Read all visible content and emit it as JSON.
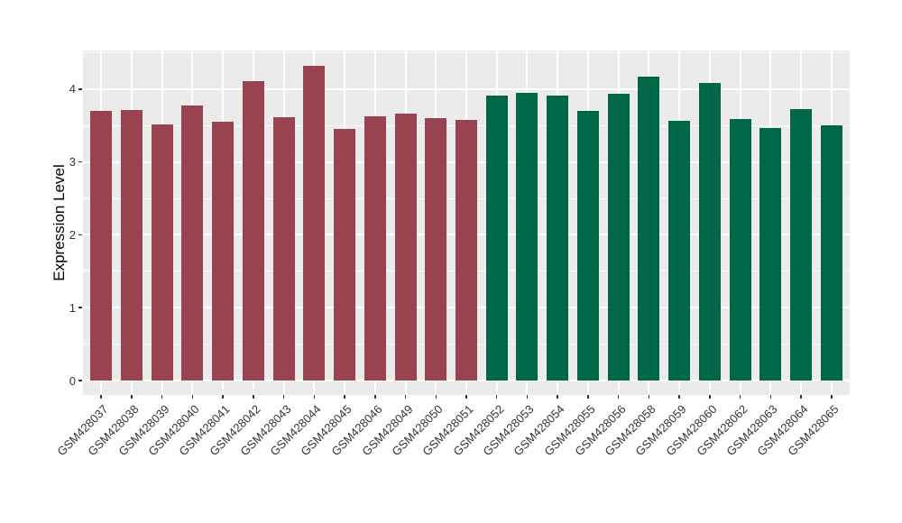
{
  "figure": {
    "background": "#FFFFFF",
    "panel_background": "#EBEBEB",
    "grid_color": "#FFFFFF",
    "axis_text_color": "#333333",
    "axis_title_color": "#000000"
  },
  "chart_data": {
    "type": "bar",
    "title": "",
    "xlabel": "",
    "ylabel": "Expression Level",
    "ylim": [
      0,
      4.53
    ],
    "y_major_ticks": [
      0,
      1,
      2,
      3,
      4
    ],
    "y_minor_ticks": [
      0.5,
      1.5,
      2.5,
      3.5,
      4.5
    ],
    "grid": true,
    "legend_position": "none",
    "x_tick_angle_deg": 45,
    "categories": [
      "GSM428037",
      "GSM428038",
      "GSM428039",
      "GSM428040",
      "GSM428041",
      "GSM428042",
      "GSM428043",
      "GSM428044",
      "GSM428045",
      "GSM428046",
      "GSM428049",
      "GSM428050",
      "GSM428051",
      "GSM428052",
      "GSM428053",
      "GSM428054",
      "GSM428055",
      "GSM428056",
      "GSM428058",
      "GSM428059",
      "GSM428060",
      "GSM428062",
      "GSM428063",
      "GSM428064",
      "GSM428065"
    ],
    "values": [
      3.7,
      3.71,
      3.52,
      3.77,
      3.55,
      4.11,
      3.62,
      4.32,
      3.45,
      3.63,
      3.66,
      3.6,
      3.58,
      3.91,
      3.95,
      3.91,
      3.7,
      3.93,
      4.17,
      3.57,
      4.09,
      3.59,
      3.46,
      3.72,
      3.5
    ],
    "groups": [
      "group-1",
      "group-1",
      "group-1",
      "group-1",
      "group-1",
      "group-1",
      "group-1",
      "group-1",
      "group-1",
      "group-1",
      "group-1",
      "group-1",
      "group-1",
      "group-2",
      "group-2",
      "group-2",
      "group-2",
      "group-2",
      "group-2",
      "group-2",
      "group-2",
      "group-2",
      "group-2",
      "group-2",
      "group-2"
    ],
    "group_colors": {
      "group-1": "#9A4350",
      "group-2": "#016749"
    }
  }
}
